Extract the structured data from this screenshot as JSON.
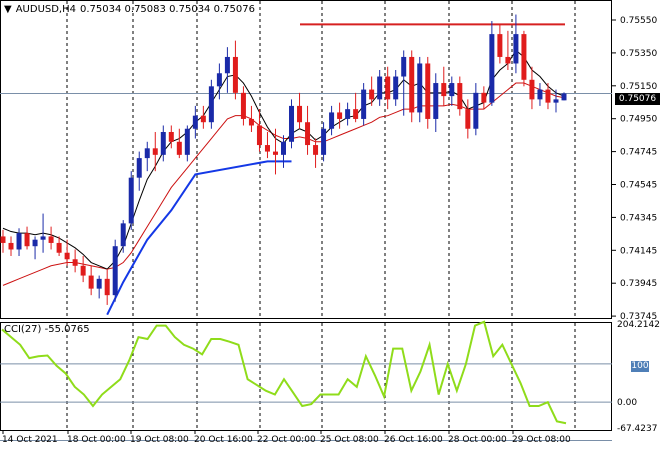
{
  "header": {
    "symbol": "AUDUSD,H4",
    "ohlc": "0.75034 0.75083 0.75034 0.75076",
    "menu_icon": "triangle-down-icon"
  },
  "price_axis": {
    "labels": [
      "0.75550",
      "0.75350",
      "0.75150",
      "0.74950",
      "0.74745",
      "0.74545",
      "0.74345",
      "0.74145",
      "0.73945",
      "0.73745"
    ],
    "current_price": "0.75076"
  },
  "cci": {
    "label": "CCI(27) -55.0765",
    "axis_labels": [
      "204.2142",
      "100",
      "0.00",
      "-67.4237"
    ],
    "levels": [
      100,
      0,
      -100
    ],
    "values": [
      190,
      170,
      150,
      115,
      120,
      122,
      95,
      75,
      40,
      20,
      -10,
      20,
      40,
      60,
      110,
      170,
      165,
      200,
      200,
      170,
      150,
      140,
      125,
      165,
      165,
      158,
      150,
      60,
      45,
      30,
      20,
      60,
      25,
      -10,
      -5,
      20,
      20,
      20,
      60,
      40,
      120,
      70,
      15,
      140,
      140,
      30,
      80,
      150,
      20,
      100,
      30,
      100,
      200,
      210,
      120,
      150,
      100,
      50,
      -10,
      -10,
      0,
      -50,
      -55
    ]
  },
  "time_axis": {
    "labels": [
      "14 Oct 2021",
      "18 Oct 00:00",
      "19 Oct 08:00",
      "20 Oct 16:00",
      "22 Oct 00:00",
      "25 Oct 08:00",
      "26 Oct 16:00",
      "28 Oct 00:00",
      "29 Oct 08:00"
    ]
  },
  "colors": {
    "bull": "#1a2aa8",
    "bear": "#e01c1c",
    "ma_fast": "#000000",
    "ma_slow": "#cc1111",
    "stop_line": "#1438e6",
    "resistance": "#d62020",
    "cci": "#8fdc1a"
  },
  "chart_data": {
    "type": "candlestick",
    "title": "AUDUSD,H4",
    "y_range": [
      0.737,
      0.756
    ],
    "resistance_level": 0.755,
    "current_price": 0.75076,
    "candles": [
      [
        0.742,
        0.7424,
        0.741,
        0.7416
      ],
      [
        0.7416,
        0.742,
        0.7408,
        0.7412
      ],
      [
        0.7412,
        0.7425,
        0.7408,
        0.7422
      ],
      [
        0.7422,
        0.7426,
        0.7412,
        0.7414
      ],
      [
        0.7414,
        0.742,
        0.7406,
        0.7418
      ],
      [
        0.7418,
        0.7434,
        0.741,
        0.742
      ],
      [
        0.742,
        0.7426,
        0.7412,
        0.7416
      ],
      [
        0.7416,
        0.742,
        0.7408,
        0.741
      ],
      [
        0.741,
        0.7418,
        0.7402,
        0.7406
      ],
      [
        0.7406,
        0.7412,
        0.7398,
        0.7402
      ],
      [
        0.7402,
        0.7408,
        0.7392,
        0.7396
      ],
      [
        0.7396,
        0.7402,
        0.7384,
        0.7388
      ],
      [
        0.7388,
        0.7396,
        0.7382,
        0.7394
      ],
      [
        0.7394,
        0.74,
        0.7378,
        0.7384
      ],
      [
        0.7384,
        0.7418,
        0.738,
        0.7414
      ],
      [
        0.7414,
        0.743,
        0.741,
        0.7428
      ],
      [
        0.7428,
        0.746,
        0.7424,
        0.7456
      ],
      [
        0.7456,
        0.7472,
        0.7448,
        0.7468
      ],
      [
        0.7468,
        0.7478,
        0.746,
        0.7474
      ],
      [
        0.7474,
        0.7484,
        0.746,
        0.747
      ],
      [
        0.747,
        0.7488,
        0.7466,
        0.7484
      ],
      [
        0.7484,
        0.7488,
        0.7474,
        0.7478
      ],
      [
        0.7478,
        0.7486,
        0.7468,
        0.747
      ],
      [
        0.747,
        0.7488,
        0.7466,
        0.7486
      ],
      [
        0.7486,
        0.75,
        0.748,
        0.7494
      ],
      [
        0.7494,
        0.75,
        0.7486,
        0.749
      ],
      [
        0.749,
        0.7516,
        0.7486,
        0.7512
      ],
      [
        0.7512,
        0.7526,
        0.7504,
        0.752
      ],
      [
        0.752,
        0.7536,
        0.7508,
        0.753
      ],
      [
        0.753,
        0.754,
        0.7504,
        0.7508
      ],
      [
        0.7508,
        0.7512,
        0.7488,
        0.7492
      ],
      [
        0.7492,
        0.75,
        0.7484,
        0.7488
      ],
      [
        0.7488,
        0.7498,
        0.7472,
        0.7476
      ],
      [
        0.7476,
        0.7484,
        0.7468,
        0.7472
      ],
      [
        0.7472,
        0.7486,
        0.7458,
        0.747
      ],
      [
        0.747,
        0.7482,
        0.7462,
        0.7478
      ],
      [
        0.7478,
        0.7504,
        0.7474,
        0.75
      ],
      [
        0.75,
        0.7508,
        0.7486,
        0.749
      ],
      [
        0.749,
        0.75,
        0.747,
        0.7476
      ],
      [
        0.7476,
        0.748,
        0.7462,
        0.747
      ],
      [
        0.747,
        0.749,
        0.7466,
        0.7486
      ],
      [
        0.7486,
        0.75,
        0.7482,
        0.7496
      ],
      [
        0.7496,
        0.7502,
        0.7486,
        0.7492
      ],
      [
        0.7492,
        0.7502,
        0.7488,
        0.7498
      ],
      [
        0.7498,
        0.7508,
        0.749,
        0.7492
      ],
      [
        0.7492,
        0.7514,
        0.7488,
        0.751
      ],
      [
        0.751,
        0.7518,
        0.75,
        0.7504
      ],
      [
        0.7504,
        0.7522,
        0.75,
        0.7518
      ],
      [
        0.7518,
        0.7524,
        0.7498,
        0.7504
      ],
      [
        0.7504,
        0.7522,
        0.75,
        0.7518
      ],
      [
        0.7518,
        0.7534,
        0.7494,
        0.753
      ],
      [
        0.753,
        0.7534,
        0.749,
        0.7496
      ],
      [
        0.7496,
        0.753,
        0.749,
        0.7526
      ],
      [
        0.7526,
        0.753,
        0.7486,
        0.7492
      ],
      [
        0.7492,
        0.752,
        0.7484,
        0.7514
      ],
      [
        0.7514,
        0.7524,
        0.75,
        0.7506
      ],
      [
        0.7506,
        0.7518,
        0.75,
        0.7514
      ],
      [
        0.7514,
        0.7518,
        0.7494,
        0.7498
      ],
      [
        0.7498,
        0.7504,
        0.748,
        0.7486
      ],
      [
        0.7486,
        0.7514,
        0.7482,
        0.7508
      ],
      [
        0.7508,
        0.7512,
        0.7498,
        0.7502
      ],
      [
        0.7502,
        0.7552,
        0.75,
        0.7544
      ],
      [
        0.7544,
        0.755,
        0.7526,
        0.753
      ],
      [
        0.753,
        0.7546,
        0.7522,
        0.7526
      ],
      [
        0.7526,
        0.7556,
        0.752,
        0.7544
      ],
      [
        0.7544,
        0.7546,
        0.7512,
        0.7516
      ],
      [
        0.7516,
        0.7524,
        0.7498,
        0.7504
      ],
      [
        0.7504,
        0.7514,
        0.75,
        0.751
      ],
      [
        0.751,
        0.7514,
        0.7498,
        0.7502
      ],
      [
        0.7502,
        0.751,
        0.7496,
        0.7504
      ],
      [
        0.75034,
        0.75083,
        0.75034,
        0.75076
      ]
    ],
    "ma_fast": [
      0.7425,
      0.7423,
      0.7422,
      0.7422,
      0.7421,
      0.7422,
      0.7421,
      0.7419,
      0.7416,
      0.7413,
      0.7409,
      0.7404,
      0.7402,
      0.74,
      0.7405,
      0.7414,
      0.7428,
      0.7442,
      0.7455,
      0.7463,
      0.7472,
      0.7478,
      0.748,
      0.7484,
      0.749,
      0.7494,
      0.7502,
      0.751,
      0.7518,
      0.7519,
      0.7514,
      0.7506,
      0.7496,
      0.7487,
      0.748,
      0.7477,
      0.7483,
      0.7486,
      0.7484,
      0.7479,
      0.7482,
      0.7487,
      0.749,
      0.7493,
      0.7494,
      0.75,
      0.7502,
      0.7508,
      0.7508,
      0.751,
      0.7516,
      0.7512,
      0.7514,
      0.7508,
      0.7508,
      0.7508,
      0.7509,
      0.7506,
      0.7498,
      0.75,
      0.7502,
      0.7516,
      0.7522,
      0.7526,
      0.7534,
      0.753,
      0.7522,
      0.7518,
      0.7512,
      0.7508,
      0.7506
    ],
    "ma_slow": [
      0.739,
      0.7392,
      0.7394,
      0.7396,
      0.7398,
      0.74,
      0.7402,
      0.7403,
      0.7404,
      0.7404,
      0.7403,
      0.7402,
      0.7401,
      0.74,
      0.7401,
      0.7404,
      0.741,
      0.7418,
      0.7426,
      0.7434,
      0.7442,
      0.745,
      0.7456,
      0.7462,
      0.7468,
      0.7474,
      0.748,
      0.7486,
      0.7492,
      0.7494,
      0.7494,
      0.7492,
      0.7488,
      0.7485,
      0.7482,
      0.748,
      0.748,
      0.7481,
      0.748,
      0.7478,
      0.7478,
      0.748,
      0.7482,
      0.7484,
      0.7486,
      0.7488,
      0.749,
      0.7493,
      0.7494,
      0.7496,
      0.7498,
      0.7498,
      0.75,
      0.75,
      0.75,
      0.75,
      0.7501,
      0.75,
      0.7498,
      0.7498,
      0.7498,
      0.7502,
      0.7506,
      0.751,
      0.7514,
      0.7514,
      0.7512,
      0.751,
      0.7508,
      0.7506,
      0.7505
    ],
    "trailing_stop": [
      [
        13,
        0.7372
      ],
      [
        15,
        0.7392
      ],
      [
        18,
        0.7418
      ],
      [
        21,
        0.7436
      ],
      [
        24,
        0.7458
      ],
      [
        33,
        0.7466
      ],
      [
        36,
        0.7466
      ]
    ]
  }
}
